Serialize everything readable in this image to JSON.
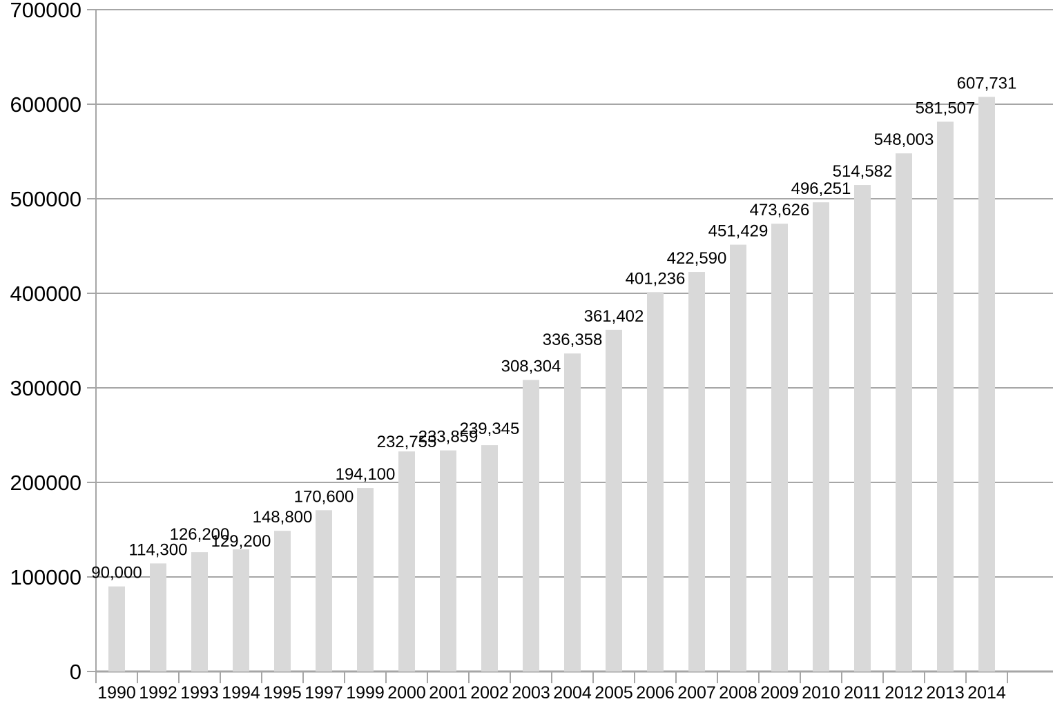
{
  "chart_data": {
    "type": "bar",
    "title": "",
    "xlabel": "",
    "ylabel": "",
    "categories": [
      "1990",
      "1992",
      "1993",
      "1994",
      "1995",
      "1997",
      "1999",
      "2000",
      "2001",
      "2002",
      "2003",
      "2004",
      "2005",
      "2006",
      "2007",
      "2008",
      "2009",
      "2010",
      "2011",
      "2012",
      "2013",
      "2014"
    ],
    "values": [
      90000,
      114300,
      126200,
      129200,
      148800,
      170600,
      194100,
      232755,
      233859,
      239345,
      308304,
      336358,
      361402,
      401236,
      422590,
      451429,
      473626,
      496251,
      514582,
      548003,
      581507,
      607731
    ],
    "value_labels": [
      "90,000",
      "114,300",
      "126,200",
      "129,200",
      "148,800",
      "170,600",
      "194,100",
      "232,755",
      "233,859",
      "239,345",
      "308,304",
      "336,358",
      "361,402",
      "401,236",
      "422,590",
      "451,429",
      "473,626",
      "496,251",
      "514,582",
      "548,003",
      "581,507",
      "607,731"
    ],
    "ylim": [
      0,
      700000
    ],
    "ytick_interval": 100000,
    "ytick_labels": [
      "0",
      "100000",
      "200000",
      "300000",
      "400000",
      "500000",
      "600000",
      "700000"
    ],
    "grid": true,
    "legend": "none",
    "layout_hints": {
      "label_dy": [
        0,
        0,
        -6,
        8,
        0,
        0,
        0,
        6,
        0,
        -4,
        0,
        0,
        0,
        0,
        0,
        0,
        0,
        0,
        0,
        0,
        0,
        0
      ],
      "bar_fill": "#d9d9d9",
      "grid_color": "#a6a6a6",
      "axis_color": "#a6a6a6",
      "text_color": "#000000",
      "background": "#ffffff"
    }
  }
}
